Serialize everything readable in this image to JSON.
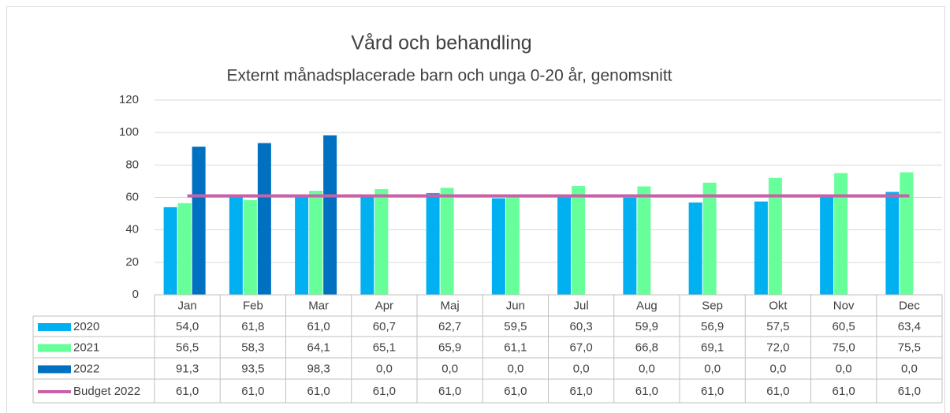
{
  "chart_data": {
    "type": "bar",
    "title": "Vård och behandling",
    "subtitle": "Externt månadsplacerade barn och unga 0-20 år, genomsnitt",
    "categories": [
      "Jan",
      "Feb",
      "Mar",
      "Apr",
      "Maj",
      "Jun",
      "Jul",
      "Aug",
      "Sep",
      "Okt",
      "Nov",
      "Dec"
    ],
    "ylim": [
      0,
      120
    ],
    "yticks": [
      0,
      20,
      40,
      60,
      80,
      100,
      120
    ],
    "grid": true,
    "series": [
      {
        "name": "2020",
        "type": "bar",
        "color": "#00b0f0",
        "values": [
          54.0,
          61.8,
          61.0,
          60.7,
          62.7,
          59.5,
          60.3,
          59.9,
          56.9,
          57.5,
          60.5,
          63.4
        ],
        "value_labels": [
          "54,0",
          "61,8",
          "61,0",
          "60,7",
          "62,7",
          "59,5",
          "60,3",
          "59,9",
          "56,9",
          "57,5",
          "60,5",
          "63,4"
        ]
      },
      {
        "name": "2021",
        "type": "bar",
        "color": "#66ff99",
        "values": [
          56.5,
          58.3,
          64.1,
          65.1,
          65.9,
          61.1,
          67.0,
          66.8,
          69.1,
          72.0,
          75.0,
          75.5
        ],
        "value_labels": [
          "56,5",
          "58,3",
          "64,1",
          "65,1",
          "65,9",
          "61,1",
          "67,0",
          "66,8",
          "69,1",
          "72,0",
          "75,0",
          "75,5"
        ]
      },
      {
        "name": "2022",
        "type": "bar",
        "color": "#0070c0",
        "values": [
          91.3,
          93.5,
          98.3,
          0.0,
          0.0,
          0.0,
          0.0,
          0.0,
          0.0,
          0.0,
          0.0,
          0.0
        ],
        "value_labels": [
          "91,3",
          "93,5",
          "98,3",
          "0,0",
          "0,0",
          "0,0",
          "0,0",
          "0,0",
          "0,0",
          "0,0",
          "0,0",
          "0,0"
        ]
      },
      {
        "name": "Budget 2022",
        "type": "line",
        "color": "#c862a8",
        "values": [
          61.0,
          61.0,
          61.0,
          61.0,
          61.0,
          61.0,
          61.0,
          61.0,
          61.0,
          61.0,
          61.0,
          61.0
        ],
        "value_labels": [
          "61,0",
          "61,0",
          "61,0",
          "61,0",
          "61,0",
          "61,0",
          "61,0",
          "61,0",
          "61,0",
          "61,0",
          "61,0",
          "61,0"
        ]
      }
    ]
  }
}
